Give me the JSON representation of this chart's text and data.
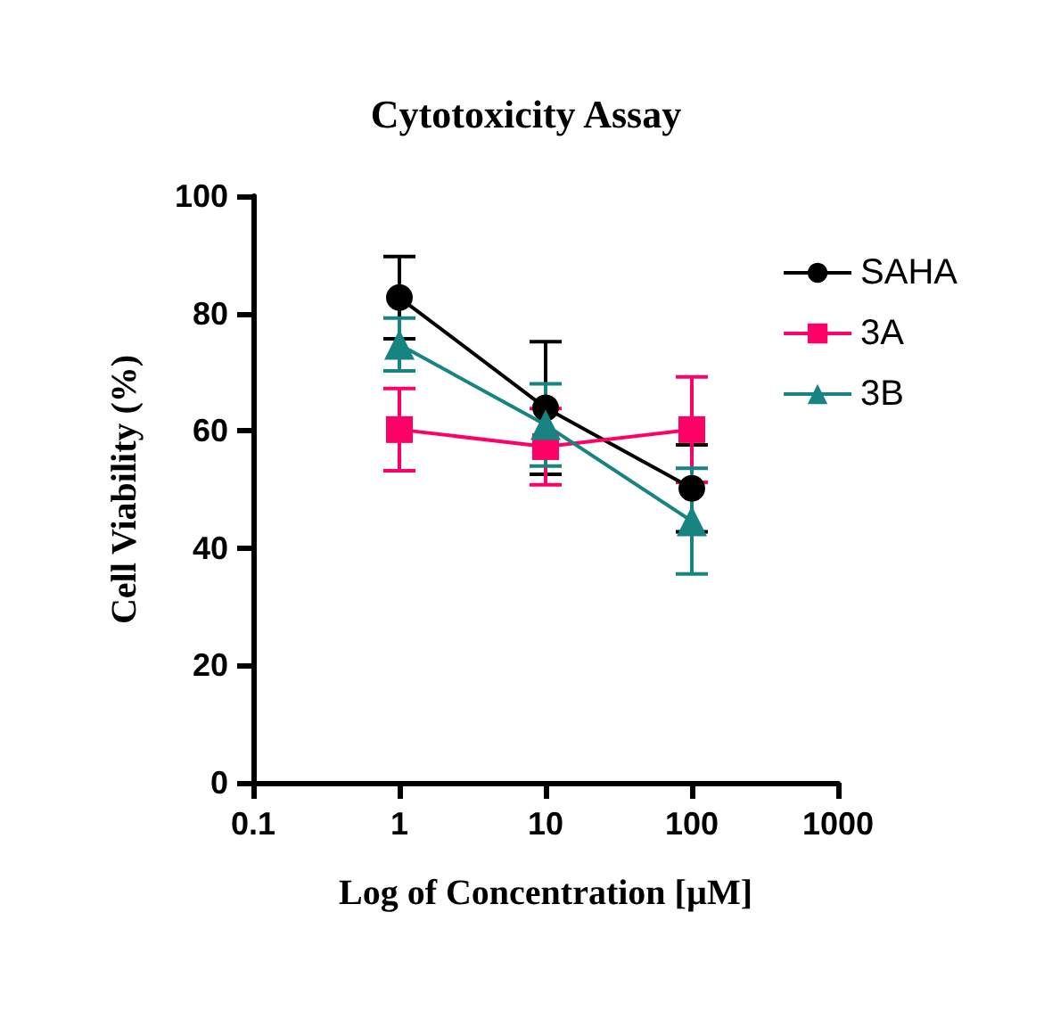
{
  "chart_data": {
    "type": "line",
    "title": "Cytotoxicity Assay",
    "xlabel": "Log of Concentration [µM]",
    "ylabel": "Cell Viability (%)",
    "log": "x",
    "x": [
      1,
      10,
      100
    ],
    "xlim": [
      0.1,
      1000
    ],
    "xticks": [
      0.1,
      1,
      10,
      100,
      1000
    ],
    "ylim": [
      0,
      100
    ],
    "yticks": [
      0,
      20,
      40,
      60,
      80,
      100
    ],
    "grid": false,
    "legend": "top right",
    "line_style": "solid",
    "series": [
      {
        "name": "SAHA",
        "color": "#000000",
        "marker": "circle",
        "values": [
          82.7,
          63.9,
          50.2
        ],
        "errors": [
          7,
          11.3,
          7.4
        ]
      },
      {
        "name": "3A",
        "color": "#ff0066",
        "marker": "square",
        "values": [
          60.2,
          57.3,
          60.2
        ],
        "errors": [
          7,
          6.5,
          9
        ]
      },
      {
        "name": "3B",
        "color": "#168582",
        "marker": "triangle",
        "values": [
          74.7,
          61,
          44.6
        ],
        "errors": [
          4.5,
          7,
          9
        ]
      }
    ]
  }
}
